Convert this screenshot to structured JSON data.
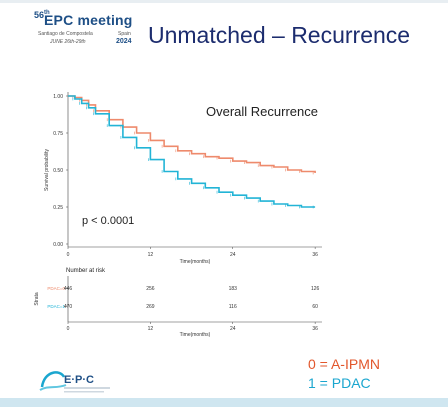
{
  "header": {
    "logo_num": "56",
    "logo_sup": "th",
    "logo_name": "EPC meeting",
    "logo_city": "Santiago de Compostela",
    "logo_country": "Spain",
    "logo_dates": "JUNE 26th-29th",
    "logo_year": "2024"
  },
  "slide": {
    "title": "Unmatched – Recurrence"
  },
  "footer_logo": {
    "name": "E·P·C"
  },
  "chart_data": {
    "type": "line",
    "title": "Overall Recurrence",
    "xlabel": "Time(months)",
    "ylabel": "Survival probability",
    "xlim": [
      0,
      37
    ],
    "ylim": [
      0,
      1
    ],
    "x_ticks": [
      0,
      12,
      24,
      36
    ],
    "y_ticks": [
      "0.00",
      "0.25",
      "0.50",
      "0.75",
      "1.00"
    ],
    "annotation": "p < 0.0001",
    "colors": {
      "series0": "#ee8a6c",
      "series1": "#22b4d6"
    },
    "series": [
      {
        "x": [
          0,
          1,
          2,
          3,
          4,
          6,
          8,
          10,
          12,
          14,
          16,
          18,
          20,
          22,
          24,
          26,
          28,
          30,
          32,
          34,
          36
        ],
        "values": [
          1.0,
          0.99,
          0.97,
          0.94,
          0.9,
          0.84,
          0.79,
          0.75,
          0.7,
          0.66,
          0.63,
          0.61,
          0.59,
          0.58,
          0.56,
          0.55,
          0.53,
          0.52,
          0.5,
          0.49,
          0.48
        ]
      },
      {
        "x": [
          0,
          1,
          2,
          3,
          4,
          6,
          8,
          10,
          12,
          14,
          16,
          18,
          20,
          22,
          24,
          26,
          28,
          30,
          32,
          34,
          36
        ],
        "values": [
          1.0,
          0.98,
          0.95,
          0.92,
          0.88,
          0.8,
          0.72,
          0.65,
          0.57,
          0.49,
          0.44,
          0.41,
          0.38,
          0.35,
          0.33,
          0.31,
          0.29,
          0.27,
          0.26,
          0.25,
          0.25
        ]
      }
    ],
    "risk_table": {
      "title": "Number at risk",
      "strata_label": "Strata",
      "row_labels": [
        "PDAC=0",
        "PDAC=1"
      ],
      "times": [
        0,
        12,
        24,
        36
      ],
      "rows": [
        [
          "446",
          "256",
          "183",
          "126"
        ],
        [
          "470",
          "269",
          "116",
          "60"
        ]
      ],
      "xlabel": "Time(months)",
      "x_ticks": [
        0,
        12,
        24,
        36
      ]
    },
    "legend": [
      "0 = A-IPMN",
      "1 = PDAC"
    ]
  }
}
